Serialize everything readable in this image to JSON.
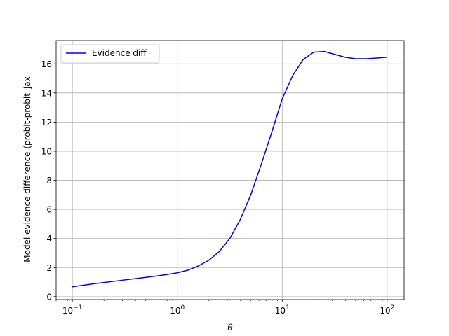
{
  "chart_data": {
    "type": "line",
    "xlabel": "θ",
    "ylabel": "Model evidence difference (probit-probit_jax",
    "xscale": "log",
    "xlim": [
      0.07,
      145
    ],
    "ylim": [
      -0.2,
      17.6
    ],
    "grid": true,
    "legend_position": "top-left",
    "x_ticks": [
      {
        "value": 0.1,
        "base": "10",
        "exp": "−1"
      },
      {
        "value": 1,
        "base": "10",
        "exp": "0"
      },
      {
        "value": 10,
        "base": "10",
        "exp": "1"
      },
      {
        "value": 100,
        "base": "10",
        "exp": "2"
      }
    ],
    "y_ticks": [
      {
        "value": 0,
        "label": "0"
      },
      {
        "value": 2,
        "label": "2"
      },
      {
        "value": 4,
        "label": "4"
      },
      {
        "value": 6,
        "label": "6"
      },
      {
        "value": 8,
        "label": "8"
      },
      {
        "value": 10,
        "label": "10"
      },
      {
        "value": 12,
        "label": "12"
      },
      {
        "value": 14,
        "label": "14"
      },
      {
        "value": 16,
        "label": "16"
      }
    ],
    "series": [
      {
        "name": "Evidence diff",
        "color": "#0000ff",
        "x": [
          0.1,
          0.126,
          0.158,
          0.2,
          0.251,
          0.316,
          0.398,
          0.501,
          0.631,
          0.794,
          1.0,
          1.259,
          1.585,
          1.995,
          2.512,
          3.162,
          3.981,
          5.012,
          6.31,
          7.943,
          10.0,
          12.59,
          15.85,
          19.95,
          25.12,
          31.62,
          39.81,
          50.12,
          63.1,
          79.43,
          100.0
        ],
        "y": [
          0.68,
          0.78,
          0.88,
          0.97,
          1.06,
          1.15,
          1.24,
          1.33,
          1.42,
          1.52,
          1.64,
          1.82,
          2.11,
          2.5,
          3.1,
          4.0,
          5.3,
          7.0,
          9.1,
          11.3,
          13.6,
          15.2,
          16.3,
          16.8,
          16.85,
          16.65,
          16.45,
          16.35,
          16.35,
          16.4,
          16.45
        ]
      }
    ]
  }
}
